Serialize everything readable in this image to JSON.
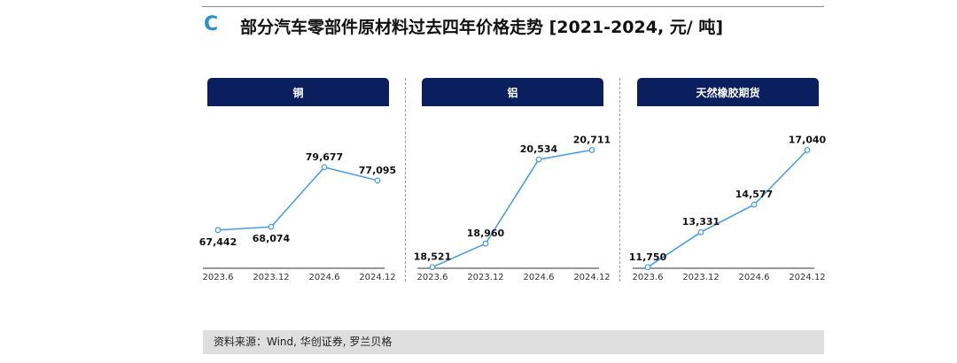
{
  "header": {
    "letter": "C",
    "title": "部分汽车零部件原材料过去四年价格走势 [2021-2024, 元/ 吨]"
  },
  "footer": {
    "source": "资料来源：Wind, 华创证券, 罗兰贝格"
  },
  "colors": {
    "line": "#3d9be9",
    "header_bg": "#0b1f5e",
    "axis": "#333333",
    "accent": "#2a8fd6"
  },
  "chart_data": [
    {
      "type": "line",
      "title": "铜",
      "categories": [
        "2023.6",
        "2023.12",
        "2024.6",
        "2024.12"
      ],
      "values": [
        67442,
        68074,
        79677,
        77095
      ],
      "labels": [
        "67,442",
        "68,074",
        "79,677",
        "77,095"
      ],
      "label_pos": [
        "below",
        "below",
        "above",
        "above"
      ],
      "ylim": [
        60000,
        85000
      ],
      "grid": false
    },
    {
      "type": "line",
      "title": "铝",
      "categories": [
        "2023.6",
        "2023.12",
        "2024.6",
        "2024.12"
      ],
      "values": [
        18521,
        18960,
        20534,
        20711
      ],
      "labels": [
        "18,521",
        "18,960",
        "20,534",
        "20,711"
      ],
      "label_pos": [
        "above",
        "above",
        "above",
        "above"
      ],
      "ylim": [
        18500,
        20900
      ],
      "grid": false
    },
    {
      "type": "line",
      "title": "天然橡胶期货",
      "categories": [
        "2023.6",
        "2023.12",
        "2024.6",
        "2024.12"
      ],
      "values": [
        11750,
        13331,
        14577,
        17040
      ],
      "labels": [
        "11,750",
        "13,331",
        "14,577",
        "17,040"
      ],
      "label_pos": [
        "above",
        "above",
        "above",
        "above"
      ],
      "ylim": [
        11700,
        17500
      ],
      "grid": false
    }
  ]
}
